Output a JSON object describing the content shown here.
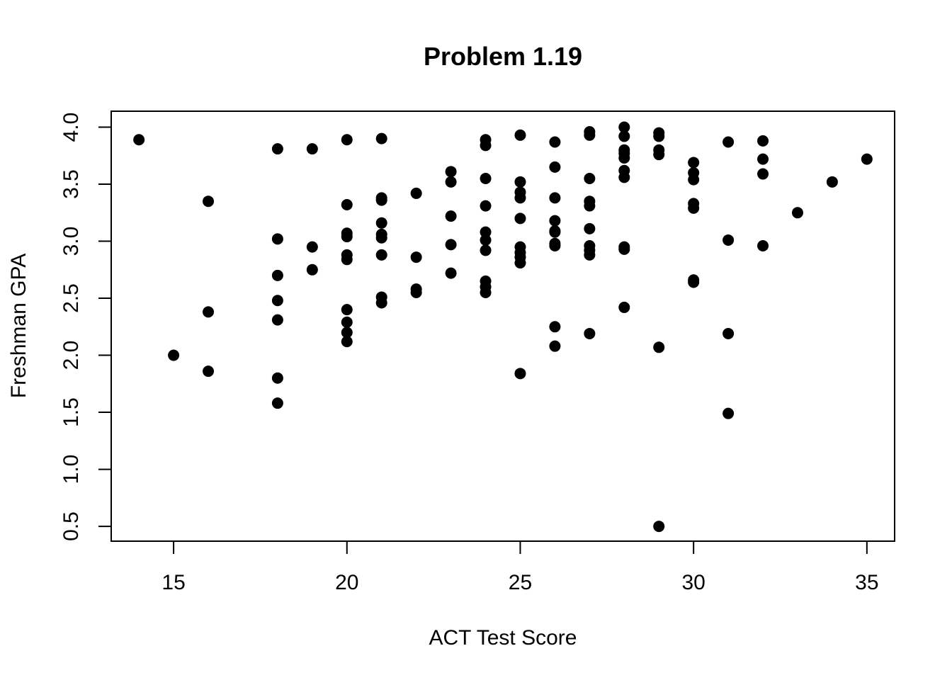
{
  "chart_data": {
    "type": "scatter",
    "title": "Problem 1.19",
    "xlabel": "ACT Test Score",
    "ylabel": "Freshman GPA",
    "xlim": [
      13.2,
      35.8
    ],
    "ylim": [
      0.37,
      4.14
    ],
    "x_ticks": [
      15,
      20,
      25,
      30,
      35
    ],
    "y_ticks": [
      0.5,
      1.0,
      1.5,
      2.0,
      2.5,
      3.0,
      3.5,
      4.0
    ],
    "x_tick_labels": [
      "15",
      "20",
      "25",
      "30",
      "35"
    ],
    "y_tick_labels": [
      "0.5",
      "1.0",
      "1.5",
      "2.0",
      "2.5",
      "3.0",
      "3.5",
      "4.0"
    ],
    "grid": false,
    "legend": "none",
    "point_color": "#000000",
    "points": [
      [
        14,
        3.89
      ],
      [
        15,
        2.0
      ],
      [
        16,
        3.35
      ],
      [
        16,
        2.38
      ],
      [
        16,
        1.86
      ],
      [
        18,
        3.81
      ],
      [
        18,
        3.02
      ],
      [
        18,
        2.7
      ],
      [
        18,
        2.48
      ],
      [
        18,
        2.31
      ],
      [
        18,
        1.8
      ],
      [
        18,
        1.58
      ],
      [
        19,
        3.81
      ],
      [
        19,
        2.95
      ],
      [
        19,
        2.75
      ],
      [
        20,
        3.89
      ],
      [
        20,
        3.32
      ],
      [
        20,
        3.07
      ],
      [
        20,
        3.04
      ],
      [
        20,
        2.88
      ],
      [
        20,
        2.84
      ],
      [
        20,
        2.4
      ],
      [
        20,
        2.29
      ],
      [
        20,
        2.2
      ],
      [
        20,
        2.12
      ],
      [
        21,
        3.9
      ],
      [
        21,
        3.38
      ],
      [
        21,
        3.36
      ],
      [
        21,
        3.16
      ],
      [
        21,
        3.06
      ],
      [
        21,
        3.03
      ],
      [
        21,
        2.88
      ],
      [
        21,
        2.51
      ],
      [
        21,
        2.46
      ],
      [
        22,
        3.42
      ],
      [
        22,
        2.86
      ],
      [
        22,
        2.58
      ],
      [
        22,
        2.55
      ],
      [
        23,
        3.61
      ],
      [
        23,
        3.52
      ],
      [
        23,
        3.22
      ],
      [
        23,
        2.97
      ],
      [
        23,
        2.72
      ],
      [
        24,
        3.89
      ],
      [
        24,
        3.84
      ],
      [
        24,
        3.55
      ],
      [
        24,
        3.31
      ],
      [
        24,
        3.08
      ],
      [
        24,
        3.01
      ],
      [
        24,
        2.92
      ],
      [
        24,
        2.65
      ],
      [
        24,
        2.6
      ],
      [
        24,
        2.55
      ],
      [
        25,
        3.93
      ],
      [
        25,
        3.52
      ],
      [
        25,
        3.43
      ],
      [
        25,
        3.38
      ],
      [
        25,
        3.2
      ],
      [
        25,
        2.95
      ],
      [
        25,
        2.9
      ],
      [
        25,
        2.86
      ],
      [
        25,
        2.81
      ],
      [
        25,
        1.84
      ],
      [
        26,
        3.87
      ],
      [
        26,
        3.65
      ],
      [
        26,
        3.38
      ],
      [
        26,
        3.18
      ],
      [
        26,
        3.09
      ],
      [
        26,
        3.08
      ],
      [
        26,
        2.98
      ],
      [
        26,
        2.96
      ],
      [
        26,
        2.25
      ],
      [
        26,
        2.08
      ],
      [
        27,
        3.96
      ],
      [
        27,
        3.93
      ],
      [
        27,
        3.55
      ],
      [
        27,
        3.35
      ],
      [
        27,
        3.31
      ],
      [
        27,
        3.11
      ],
      [
        27,
        2.96
      ],
      [
        27,
        2.92
      ],
      [
        27,
        2.88
      ],
      [
        27,
        2.19
      ],
      [
        28,
        4.0
      ],
      [
        28,
        3.92
      ],
      [
        28,
        3.8
      ],
      [
        28,
        3.77
      ],
      [
        28,
        3.73
      ],
      [
        28,
        3.62
      ],
      [
        28,
        3.56
      ],
      [
        28,
        2.95
      ],
      [
        28,
        2.93
      ],
      [
        28,
        2.42
      ],
      [
        29,
        3.95
      ],
      [
        29,
        3.92
      ],
      [
        29,
        3.8
      ],
      [
        29,
        3.76
      ],
      [
        29,
        2.07
      ],
      [
        29,
        0.5
      ],
      [
        30,
        3.69
      ],
      [
        30,
        3.6
      ],
      [
        30,
        3.54
      ],
      [
        30,
        3.33
      ],
      [
        30,
        3.29
      ],
      [
        30,
        2.66
      ],
      [
        30,
        2.64
      ],
      [
        31,
        3.87
      ],
      [
        31,
        3.01
      ],
      [
        31,
        2.19
      ],
      [
        31,
        1.49
      ],
      [
        32,
        3.88
      ],
      [
        32,
        3.72
      ],
      [
        32,
        3.59
      ],
      [
        32,
        2.96
      ],
      [
        33,
        3.25
      ],
      [
        34,
        3.52
      ],
      [
        35,
        3.72
      ]
    ]
  }
}
